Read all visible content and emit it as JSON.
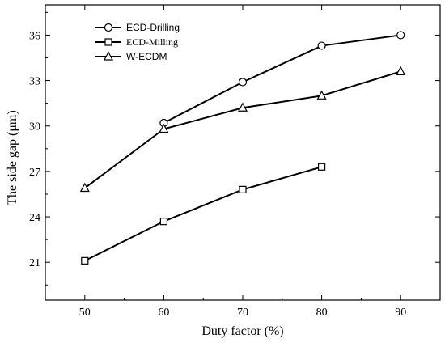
{
  "chart_data": {
    "type": "line",
    "title": "",
    "xlabel": "Duty factor (%)",
    "ylabel": "The side gap (μm)",
    "xlim": [
      45,
      95
    ],
    "ylim": [
      18.5,
      38
    ],
    "xticks": [
      50,
      60,
      70,
      80,
      90
    ],
    "yticks": [
      21,
      24,
      27,
      30,
      33,
      36
    ],
    "grid": false,
    "legend_position": "top-left",
    "series": [
      {
        "name": "ECD-Drilling",
        "marker": "circle",
        "x": [
          60,
          70,
          80,
          90
        ],
        "values": [
          30.2,
          32.9,
          35.3,
          36.0
        ]
      },
      {
        "name": "ECD-Milling",
        "marker": "square",
        "x": [
          50,
          60,
          70,
          80
        ],
        "values": [
          21.1,
          23.7,
          25.8,
          27.3
        ]
      },
      {
        "name": "W-ECDM",
        "marker": "triangle",
        "x": [
          50,
          60,
          70,
          80,
          90
        ],
        "values": [
          25.9,
          29.8,
          31.2,
          32.0,
          33.6
        ]
      }
    ]
  }
}
